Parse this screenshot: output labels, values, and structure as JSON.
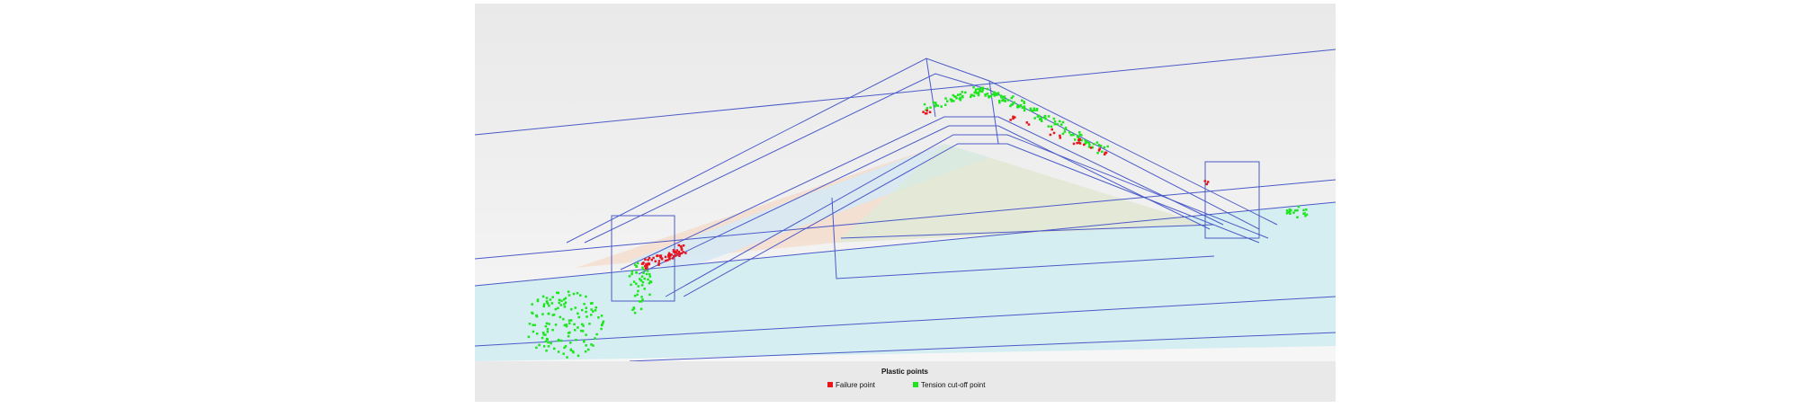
{
  "legend": {
    "title": "Plastic points",
    "items": [
      {
        "label": "Failure point",
        "color": "#e8141e"
      },
      {
        "label": "Tension cut-off point",
        "color": "#1ee61e"
      }
    ]
  }
}
